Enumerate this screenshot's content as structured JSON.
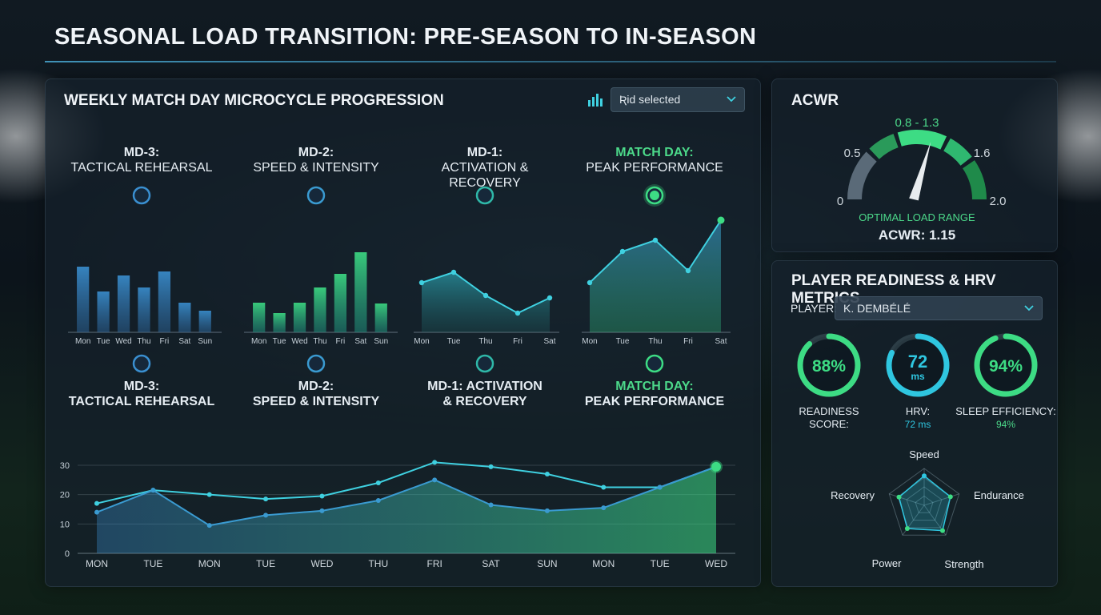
{
  "page": {
    "title": "SEASONAL LOAD TRANSITION: PRE-SEASON TO IN-SEASON"
  },
  "microcycle": {
    "title": "WEEKLY MATCH DAY MICROCYCLE PROGRESSION",
    "select_label": "Ʀid selected",
    "select_icon": "bar-chart-icon",
    "top_stages": [
      {
        "head": "MD-3:",
        "sub": "TACTICAL REHEARSAL",
        "accent": false
      },
      {
        "head": "MD-2:",
        "sub": "SPEED & INTENSITY",
        "accent": false
      },
      {
        "head": "MD-1:",
        "sub": "ACTIVATION & RECOVERY",
        "accent": false
      },
      {
        "head": "MATCH DAY:",
        "sub": "PEAK PERFORMANCE",
        "accent": true
      }
    ],
    "bottom_stages": [
      {
        "head": "MD-3:",
        "sub": "TACTICAL REHEARSAL",
        "accent": false
      },
      {
        "head": "MD-2:",
        "sub": "SPEED & INTENSITY",
        "accent": false
      },
      {
        "head": "MD-1: ACTIVATION",
        "sub": "& RECOVERY",
        "accent": false
      },
      {
        "head": "MATCH DAY:",
        "sub": "PEAK PERFORMANCE",
        "accent": true
      }
    ],
    "colors": {
      "blue": "#3a8fd0",
      "teal": "#2fb8a8",
      "green": "#3ddc84",
      "cyan": "#3fd0e0"
    }
  },
  "chart_data": [
    {
      "type": "bar",
      "categories": [
        "Mon",
        "Tue",
        "Wed",
        "Thu",
        "Fri",
        "Sat",
        "Sun"
      ],
      "values": [
        82,
        51,
        71,
        56,
        76,
        37,
        27
      ]
    },
    {
      "type": "bar",
      "categories": [
        "Mon",
        "Tue",
        "Wed",
        "Thu",
        "Fri",
        "Sat",
        "Sun"
      ],
      "values": [
        37,
        24,
        37,
        56,
        73,
        100,
        36
      ]
    },
    {
      "type": "area",
      "categories": [
        "Mon",
        "Tue",
        "Thu",
        "Fri",
        "Sat"
      ],
      "x_ticks": [
        "Mon",
        "Tue",
        "Thu",
        "Fri",
        "Sat"
      ],
      "values": [
        62,
        75,
        46,
        24,
        43
      ]
    },
    {
      "type": "area",
      "categories": [
        "Mon",
        "Tue",
        "Thu",
        "Fri",
        "Sat"
      ],
      "x_ticks": [
        "Mon",
        "Tue",
        "Thu",
        "Fri",
        "Sat"
      ],
      "values": [
        62,
        101,
        115,
        77,
        140
      ]
    },
    {
      "type": "line",
      "categories": [
        "MON",
        "TUE",
        "MON",
        "TUE",
        "WED",
        "THU",
        "FRI",
        "SAT",
        "SUN",
        "MON",
        "TUE",
        "WED"
      ],
      "ylim": [
        0,
        30
      ],
      "y_ticks": [
        0,
        10,
        20,
        30
      ],
      "grid": true,
      "series": [
        {
          "values": [
            17,
            21.5,
            20,
            18.5,
            19.5,
            24,
            31,
            29.5,
            27,
            22.5,
            22.5,
            29.5
          ]
        },
        {
          "values": [
            14,
            21.5,
            9.5,
            13,
            14.5,
            18,
            25,
            16.5,
            14.5,
            15.5,
            22.5,
            29.5
          ]
        }
      ]
    }
  ],
  "acwr": {
    "title": "ACWR",
    "range_label": "0.8 - 1.3",
    "ticks": {
      "t0": "0",
      "t05": "0.5",
      "t16": "1.6",
      "t20": "2.0"
    },
    "caption": "OPTIMAL LOAD RANGE",
    "value_text": "ACWR: 1.15",
    "value": 1.15,
    "scale_max": 2.0,
    "optimal_min": 0.8,
    "optimal_max": 1.3
  },
  "readiness": {
    "title": "PLAYER READINESS & HRV METRICS",
    "player_label": "PLAYER:",
    "player_value": "K. DEMBÉLÉ",
    "metrics": [
      {
        "value": "88%",
        "unit": "",
        "label": "READINESS",
        "label2": "SCORE:",
        "sub": "",
        "fraction": 0.88,
        "color": "#3ddc84"
      },
      {
        "value": "72",
        "unit": "ms",
        "label": "HRV:",
        "label2": "",
        "sub": "72 ms",
        "fraction": 0.82,
        "color": "#2fc6e0"
      },
      {
        "value": "94%",
        "unit": "",
        "label": "SLEEP EFFICIENCY:",
        "label2": "",
        "sub": "94%",
        "fraction": 0.94,
        "color": "#3ddc84"
      }
    ],
    "radar": {
      "axes": [
        "Speed",
        "Endurance",
        "Strength",
        "Power",
        "Recovery"
      ],
      "values": [
        0.8,
        0.75,
        0.85,
        0.78,
        0.72
      ]
    }
  }
}
